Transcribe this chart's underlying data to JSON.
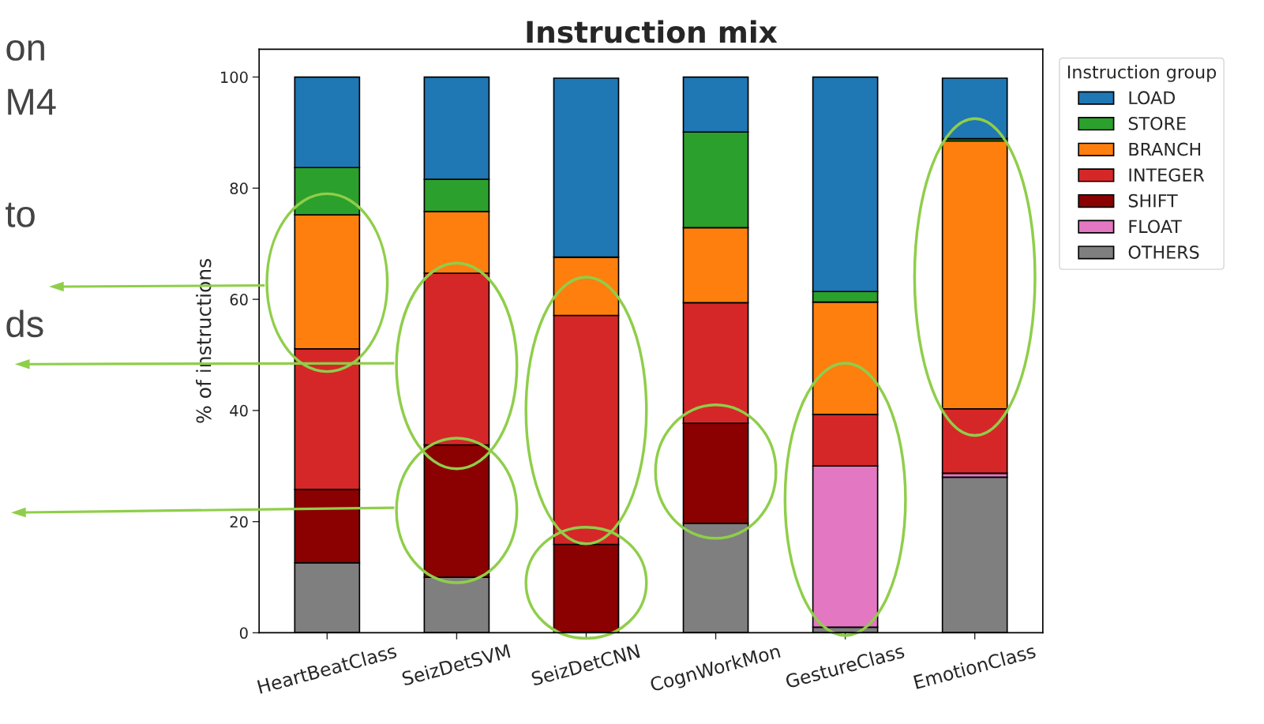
{
  "chart_data": {
    "type": "bar",
    "title": "Instruction mix",
    "ylabel": "% of instructions",
    "legend_title": "Instruction group",
    "categories": [
      "HeartBeatClass",
      "SeizDetSVM",
      "SeizDetCNN",
      "CognWorkMon",
      "GestureClass",
      "EmotionClass"
    ],
    "stacked": true,
    "legend": "top right",
    "grid": false,
    "ylim": [
      0,
      105
    ],
    "yticks": [
      0,
      20,
      40,
      60,
      80,
      100
    ],
    "series": [
      {
        "name": "OTHERS",
        "color": "#7f7f7f",
        "values": [
          12.6,
          10.0,
          null,
          19.7,
          1.0,
          28.0
        ]
      },
      {
        "name": "FLOAT",
        "color": "#e377c2",
        "values": [
          0,
          0,
          0,
          0,
          29.0,
          0.7
        ]
      },
      {
        "name": "SHIFT",
        "color": "#8b0000",
        "values": [
          13.2,
          23.8,
          15.9,
          18.0,
          0,
          null
        ]
      },
      {
        "name": "INTEGER",
        "color": "#d62728",
        "values": [
          25.3,
          30.9,
          41.2,
          21.7,
          9.3,
          11.6
        ]
      },
      {
        "name": "BRANCH",
        "color": "#ff7f0e",
        "values": [
          24.1,
          11.1,
          10.5,
          13.5,
          20.2,
          48.2
        ]
      },
      {
        "name": "STORE",
        "color": "#2ca02c",
        "values": [
          8.5,
          5.8,
          0,
          17.2,
          1.9,
          0.4
        ]
      },
      {
        "name": "LOAD",
        "color": "#1f77b4",
        "values": [
          16.3,
          18.4,
          32.2,
          9.9,
          38.6,
          10.9
        ]
      }
    ],
    "annotations": [
      "on",
      "M4",
      "to",
      "ds"
    ]
  }
}
